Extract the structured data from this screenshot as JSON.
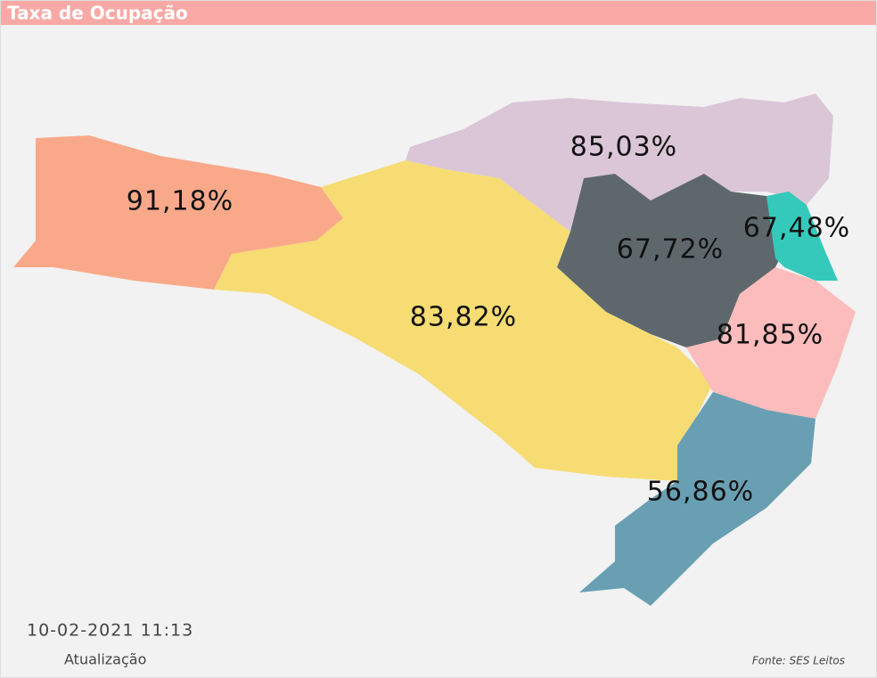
{
  "header": {
    "title": "Taxa de Ocupação"
  },
  "regions": [
    {
      "label": "91,18%",
      "color": "#f9a98a"
    },
    {
      "label": "83,82%",
      "color": "#f6dc73"
    },
    {
      "label": "85,03%",
      "color": "#dbc6d8"
    },
    {
      "label": "67,72%",
      "color": "#5e686c"
    },
    {
      "label": "67,48%",
      "color": "#35c9bb"
    },
    {
      "label": "81,85%",
      "color": "#fbbcbb"
    },
    {
      "label": "56,86%",
      "color": "#699fb3"
    }
  ],
  "footer": {
    "timestamp": "10-02-2021 11:13",
    "timestamp_caption": "Atualização",
    "source": "Fonte: SES Leitos"
  }
}
